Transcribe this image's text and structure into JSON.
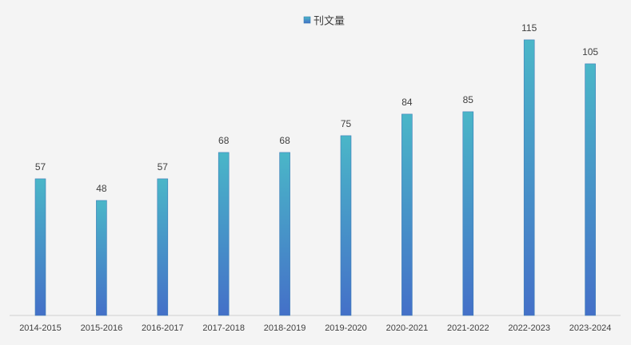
{
  "chart_data": {
    "type": "bar",
    "title": "",
    "xlabel": "",
    "ylabel": "",
    "legend_position": "top-center",
    "grid": false,
    "ylim": [
      0,
      125
    ],
    "categories": [
      "2014-2015",
      "2015-2016",
      "2016-2017",
      "2017-2018",
      "2018-2019",
      "2019-2020",
      "2020-2021",
      "2021-2022",
      "2022-2023",
      "2023-2024"
    ],
    "series": [
      {
        "name": "刊文量",
        "values": [
          57,
          48,
          57,
          68,
          68,
          75,
          84,
          85,
          115,
          105
        ],
        "color_top": "#4ab6c8",
        "color_bottom": "#4470c8"
      }
    ]
  }
}
